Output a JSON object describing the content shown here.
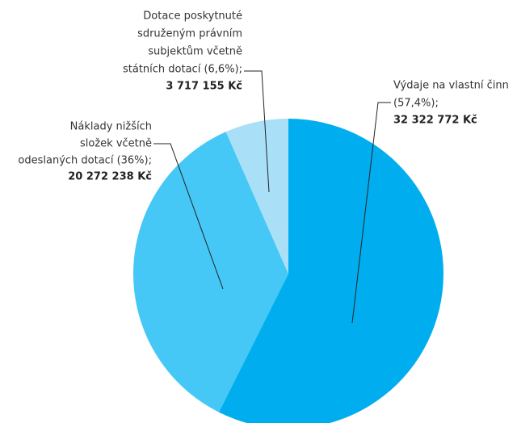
{
  "chart_data": {
    "type": "pie",
    "labels": [
      [
        "Výdaje na vlastní činn",
        "(57,4%);"
      ],
      [
        "Náklady nižších",
        "složek včetně",
        "odeslaných dotací (36%);"
      ],
      [
        "Dotace poskytnuté",
        "sdruženým právním",
        "subjektům včetně",
        "státních dotací (6,6%);"
      ]
    ],
    "values": [
      32322772,
      20272238,
      3717155
    ],
    "value_labels": [
      "32 322 772 Kč",
      "20 272 238 Kč",
      "3 717 155 Kč"
    ],
    "colors": [
      "#00aeef",
      "#45c8f5",
      "#a9e0f8"
    ]
  }
}
